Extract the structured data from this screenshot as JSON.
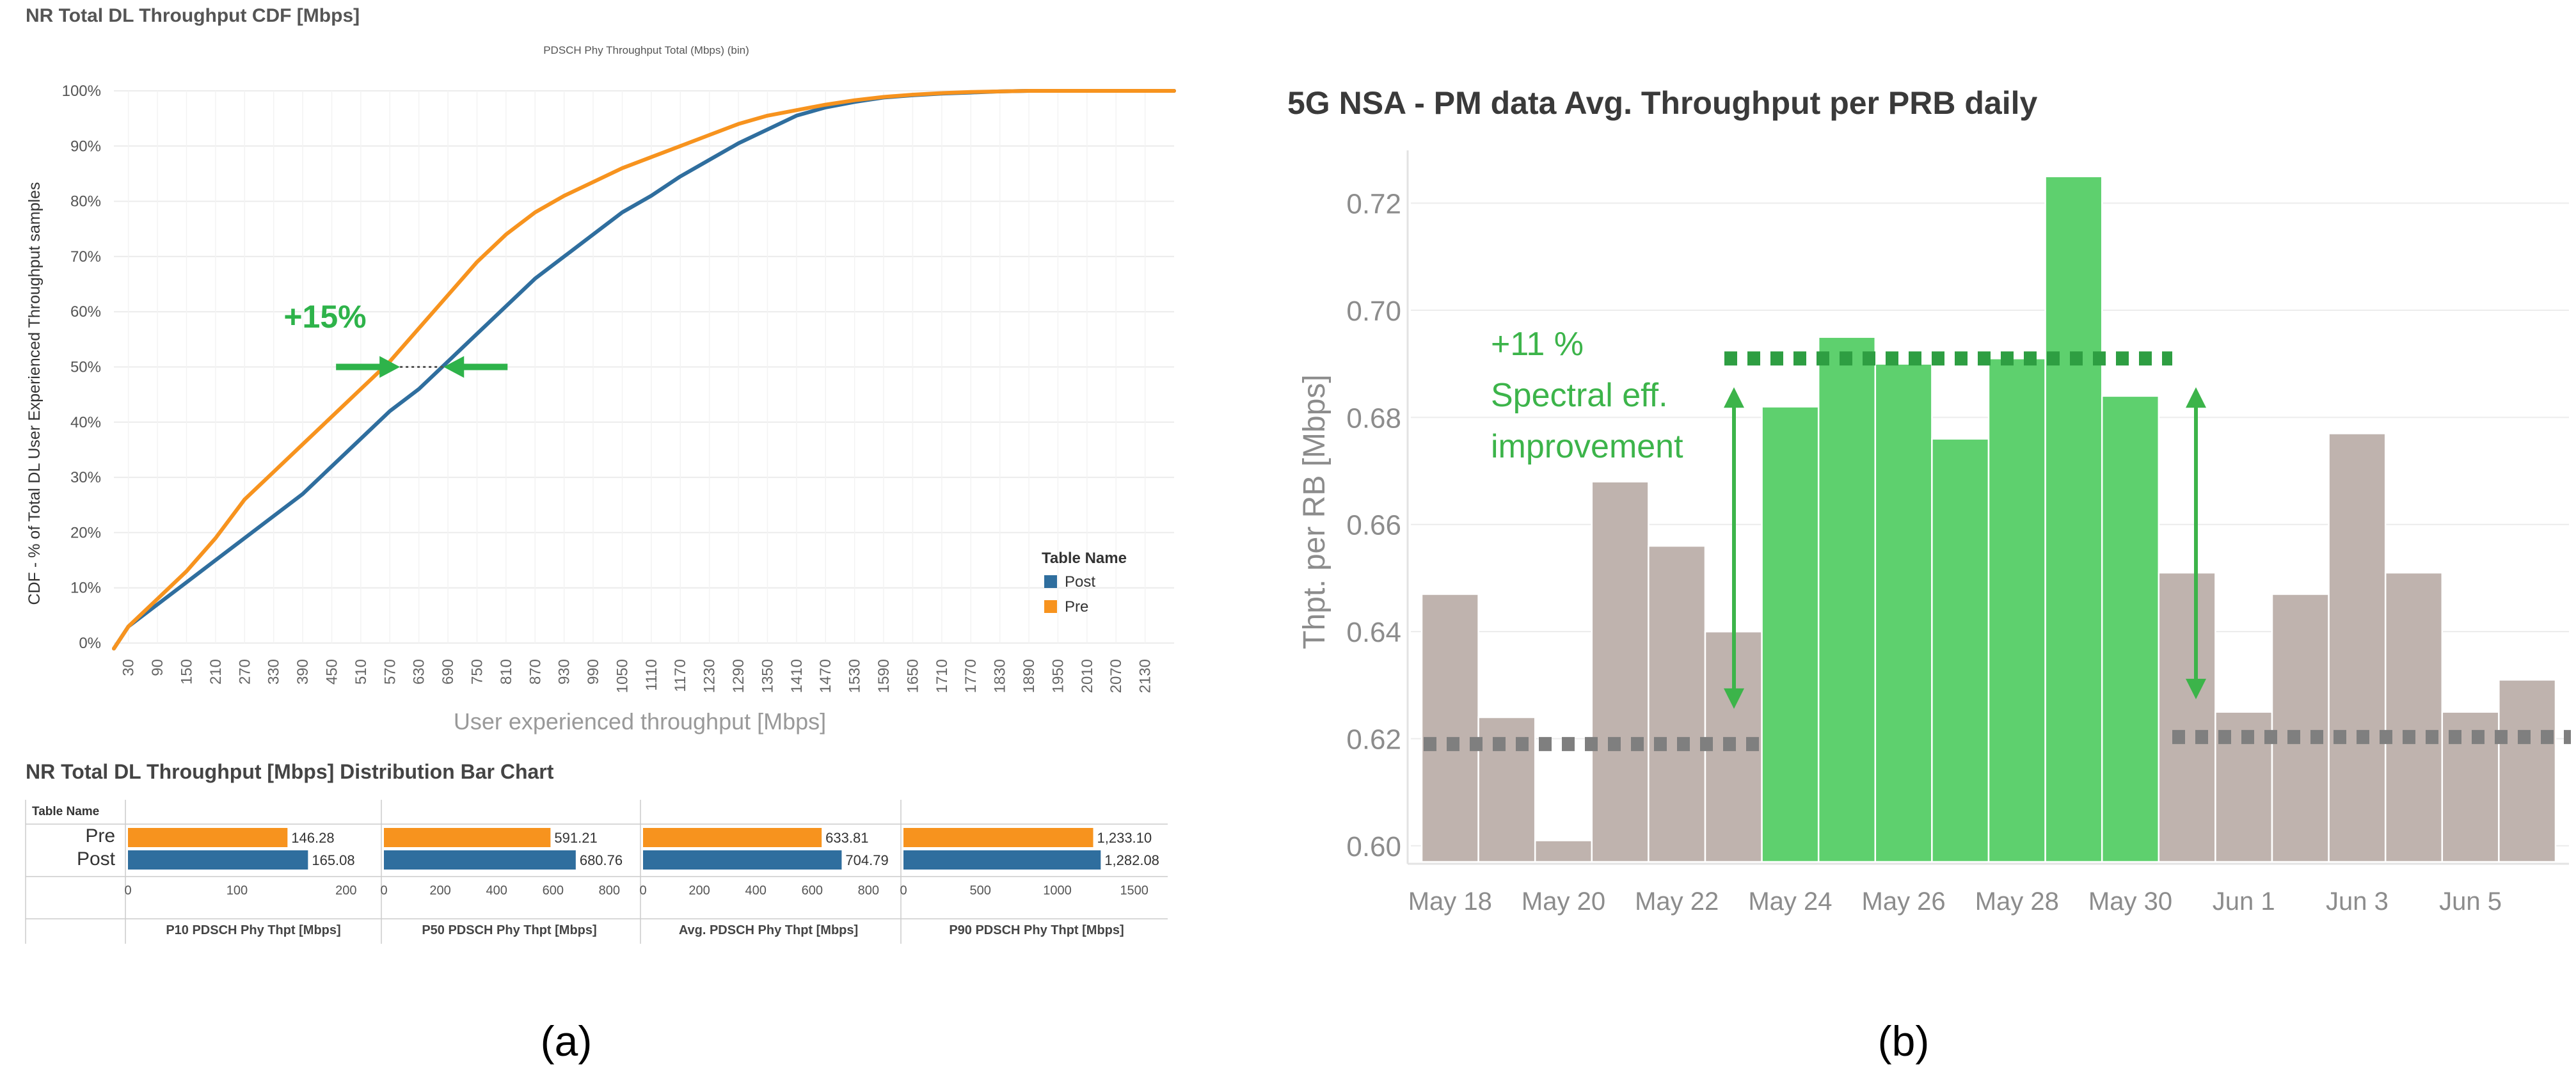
{
  "panel_a": {
    "caption": "(a)",
    "cdf_chart_title": "NR Total DL Throughput CDF [Mbps]",
    "cdf_subtitle": "PDSCH Phy Throughput Total (Mbps) (bin)",
    "improvement_label": "+15%",
    "bar_section_title": "NR Total DL Throughput [Mbps] Distribution Bar Chart",
    "bar_table_name_header": "Table Name"
  },
  "panel_b": {
    "caption": "(b)",
    "improvement_line1": "+11 %",
    "improvement_line2": "Spectral eff.",
    "improvement_line3": "improvement"
  },
  "colors": {
    "pre": "#F7931E",
    "post": "#2F6E9E",
    "highlight": "#2EB34A",
    "bar_green": "#5ED06E",
    "bar_gray": "#BFB3AE",
    "baseline_dots": "#7F7F7F"
  },
  "chart_data": [
    {
      "type": "line",
      "title": "NR Total DL Throughput CDF [Mbps]",
      "subtitle": "PDSCH Phy Throughput Total (Mbps) (bin)",
      "xlabel": "User experienced throughput [Mbps]",
      "ylabel": "CDF - % of Total DL User Experienced Throughput samples",
      "xlim": [
        0,
        2190
      ],
      "ylim": [
        0,
        100
      ],
      "x_ticks": [
        30,
        90,
        150,
        210,
        270,
        330,
        390,
        450,
        510,
        570,
        630,
        690,
        750,
        810,
        870,
        930,
        990,
        1050,
        1110,
        1170,
        1230,
        1290,
        1350,
        1410,
        1470,
        1530,
        1590,
        1650,
        1710,
        1770,
        1830,
        1890,
        1950,
        2010,
        2070,
        2130
      ],
      "y_ticks": [
        "0%",
        "10%",
        "20%",
        "30%",
        "40%",
        "50%",
        "60%",
        "70%",
        "80%",
        "90%",
        "100%"
      ],
      "legend": {
        "title": "Table Name",
        "position": "right",
        "entries": [
          "Post",
          "Pre"
        ]
      },
      "series": [
        {
          "name": "Pre",
          "x": [
            0,
            30,
            90,
            150,
            210,
            270,
            330,
            390,
            450,
            510,
            570,
            630,
            690,
            750,
            810,
            870,
            930,
            990,
            1050,
            1110,
            1170,
            1230,
            1290,
            1350,
            1410,
            1470,
            1530,
            1590,
            1650,
            1710,
            1770,
            1830,
            1890,
            1950,
            2010,
            2070,
            2130,
            2190
          ],
          "y": [
            -1,
            3,
            8,
            13,
            19,
            26,
            31,
            36,
            41,
            46,
            51,
            57,
            63,
            69,
            74,
            78,
            81,
            83.5,
            86,
            88,
            90,
            92,
            94,
            95.5,
            96.5,
            97.5,
            98.3,
            98.9,
            99.3,
            99.6,
            99.8,
            99.9,
            100,
            100,
            100,
            100,
            100,
            100
          ]
        },
        {
          "name": "Post",
          "x": [
            0,
            30,
            90,
            150,
            210,
            270,
            330,
            390,
            450,
            510,
            570,
            630,
            690,
            750,
            810,
            870,
            930,
            990,
            1050,
            1110,
            1170,
            1230,
            1290,
            1350,
            1410,
            1470,
            1530,
            1590,
            1650,
            1710,
            1770,
            1830,
            1890,
            1950,
            2010,
            2070,
            2130,
            2190
          ],
          "y": [
            -1,
            3,
            7,
            11,
            15,
            19,
            23,
            27,
            32,
            37,
            42,
            46,
            51,
            56,
            61,
            66,
            70,
            74,
            78,
            81,
            84.5,
            87.5,
            90.5,
            93,
            95.5,
            97,
            98,
            98.8,
            99.2,
            99.5,
            99.7,
            99.9,
            100,
            100,
            100,
            100,
            100,
            100
          ]
        }
      ],
      "annotation": {
        "text": "+15%",
        "at_y": 50,
        "pre_x": 591,
        "post_x": 681
      }
    },
    {
      "type": "bar",
      "title": "NR Total DL Throughput [Mbps] Distribution Bar Chart",
      "row_header": "Table Name",
      "rows": [
        "Pre",
        "Post"
      ],
      "panels": [
        {
          "name": "P10 PDSCH Phy Thpt [Mbps]",
          "axis_ticks": [
            "0",
            "100",
            "200"
          ],
          "xlim": [
            0,
            230
          ],
          "values": [
            146.28,
            165.08
          ],
          "labels": [
            "146.28",
            "165.08"
          ]
        },
        {
          "name": "P50 PDSCH Phy Thpt [Mbps]",
          "axis_ticks": [
            "0",
            "200",
            "400",
            "600",
            "800"
          ],
          "xlim": [
            0,
            890
          ],
          "values": [
            591.21,
            680.76
          ],
          "labels": [
            "591.21",
            "680.76"
          ]
        },
        {
          "name": "Avg. PDSCH Phy Thpt [Mbps]",
          "axis_ticks": [
            "0",
            "200",
            "400",
            "600",
            "800"
          ],
          "xlim": [
            0,
            890
          ],
          "values": [
            633.81,
            704.79
          ],
          "labels": [
            "633.81",
            "704.79"
          ]
        },
        {
          "name": "P90 PDSCH Phy Thpt [Mbps]",
          "axis_ticks": [
            "0",
            "500",
            "1000",
            "1500"
          ],
          "xlim": [
            0,
            1730
          ],
          "values": [
            1233.1,
            1282.08
          ],
          "labels": [
            "1,233.10",
            "1,282.08"
          ]
        }
      ]
    },
    {
      "type": "bar",
      "title": "5G NSA - PM data Avg. Throughput per PRB daily",
      "ylabel": "Thpt. per RB [Mbps]",
      "ylim": [
        0.597,
        0.735
      ],
      "y_ticks": [
        "0.60",
        "0.62",
        "0.64",
        "0.66",
        "0.68",
        "0.70",
        "0.72"
      ],
      "y_tick_values": [
        0.6,
        0.62,
        0.64,
        0.66,
        0.68,
        0.7,
        0.72
      ],
      "categories": [
        "May 18",
        "May 19",
        "May 20",
        "May 21",
        "May 22",
        "May 23",
        "May 24",
        "May 25",
        "May 26",
        "May 27",
        "May 28",
        "May 29",
        "May 30",
        "May 31",
        "Jun 1",
        "Jun 2",
        "Jun 3",
        "Jun 4",
        "Jun 5",
        "Jun 6"
      ],
      "x_tick_labels": [
        "May 18",
        "May 20",
        "May 22",
        "May 24",
        "May 26",
        "May 28",
        "May 30",
        "Jun 1",
        "Jun 3",
        "Jun 5"
      ],
      "values": [
        0.647,
        0.624,
        0.601,
        0.668,
        0.656,
        0.64,
        0.682,
        0.695,
        0.69,
        0.676,
        0.691,
        0.725,
        0.684,
        0.651,
        0.625,
        0.647,
        0.677,
        0.651,
        0.625,
        0.631
      ],
      "highlighted": [
        false,
        false,
        false,
        false,
        false,
        false,
        true,
        true,
        true,
        true,
        true,
        true,
        true,
        false,
        false,
        false,
        false,
        false,
        false,
        false
      ],
      "baseline_low": 0.619,
      "baseline_high": 0.691,
      "annotation": "+11 % Spectral eff. improvement"
    }
  ]
}
